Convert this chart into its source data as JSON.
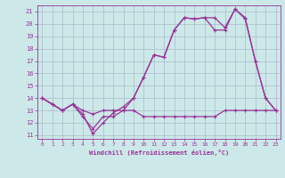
{
  "xlabel": "Windchill (Refroidissement éolien,°C)",
  "background_color": "#cce8e8",
  "grid_color": "#aabbcc",
  "line_color": "#993399",
  "xlim": [
    -0.5,
    23.5
  ],
  "ylim": [
    10.7,
    21.5
  ],
  "xticks": [
    0,
    1,
    2,
    3,
    4,
    5,
    6,
    7,
    8,
    9,
    10,
    11,
    12,
    13,
    14,
    15,
    16,
    17,
    18,
    19,
    20,
    21,
    22,
    23
  ],
  "yticks": [
    11,
    12,
    13,
    14,
    15,
    16,
    17,
    18,
    19,
    20,
    21
  ],
  "line1_x": [
    0,
    1,
    2,
    3,
    4,
    5,
    6,
    7,
    8,
    9,
    10,
    11,
    12,
    13,
    14,
    15,
    16,
    17,
    18,
    19,
    20,
    21,
    22,
    23
  ],
  "line1_y": [
    14.0,
    13.5,
    13.0,
    13.5,
    12.7,
    11.1,
    12.0,
    12.8,
    13.3,
    14.0,
    15.7,
    17.5,
    17.3,
    19.5,
    20.5,
    20.4,
    20.5,
    20.5,
    19.7,
    21.2,
    20.5,
    17.0,
    14.0,
    13.0
  ],
  "line2_x": [
    0,
    1,
    2,
    3,
    4,
    5,
    6,
    7,
    8,
    9,
    10,
    11,
    12,
    13,
    14,
    15,
    16,
    17,
    18,
    19,
    20,
    21,
    22,
    23
  ],
  "line2_y": [
    14.0,
    13.5,
    13.0,
    13.5,
    13.0,
    12.7,
    13.0,
    13.0,
    13.0,
    13.0,
    12.5,
    12.5,
    12.5,
    12.5,
    12.5,
    12.5,
    12.5,
    12.5,
    13.0,
    13.0,
    13.0,
    13.0,
    13.0,
    13.0
  ],
  "line3_x": [
    0,
    1,
    2,
    3,
    4,
    5,
    6,
    7,
    8,
    9,
    10,
    11,
    12,
    13,
    14,
    15,
    16,
    17,
    18,
    19,
    20,
    21,
    22,
    23
  ],
  "line3_y": [
    14.0,
    13.5,
    13.0,
    13.5,
    12.5,
    11.5,
    12.5,
    12.5,
    13.0,
    14.0,
    15.7,
    17.5,
    17.3,
    19.5,
    20.5,
    20.4,
    20.5,
    19.5,
    19.5,
    21.2,
    20.4,
    17.0,
    14.0,
    13.0
  ]
}
